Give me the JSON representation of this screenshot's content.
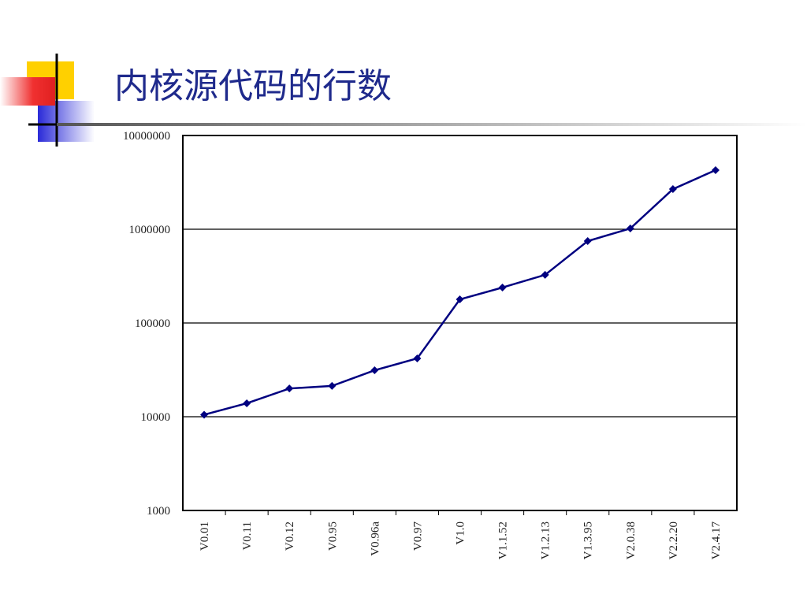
{
  "chart_data": {
    "type": "line",
    "title": "内核源代码的行数",
    "categories": [
      "V0.01",
      "V0.11",
      "V0.12",
      "V0.95",
      "V0.96a",
      "V0.97",
      "V1.0",
      "V1.1.52",
      "V1.2.13",
      "V1.3.95",
      "V2.0.38",
      "V2.2.20",
      "V2.4.17"
    ],
    "values": [
      10500,
      13900,
      20000,
      21300,
      31300,
      41900,
      178600,
      239000,
      326000,
      748000,
      1019000,
      2680000,
      4270000
    ],
    "color": "#000080",
    "log_y": true,
    "ylim": [
      1000,
      10000000
    ],
    "yticks": [
      1000,
      10000,
      100000,
      1000000,
      10000000
    ],
    "grid": true
  }
}
